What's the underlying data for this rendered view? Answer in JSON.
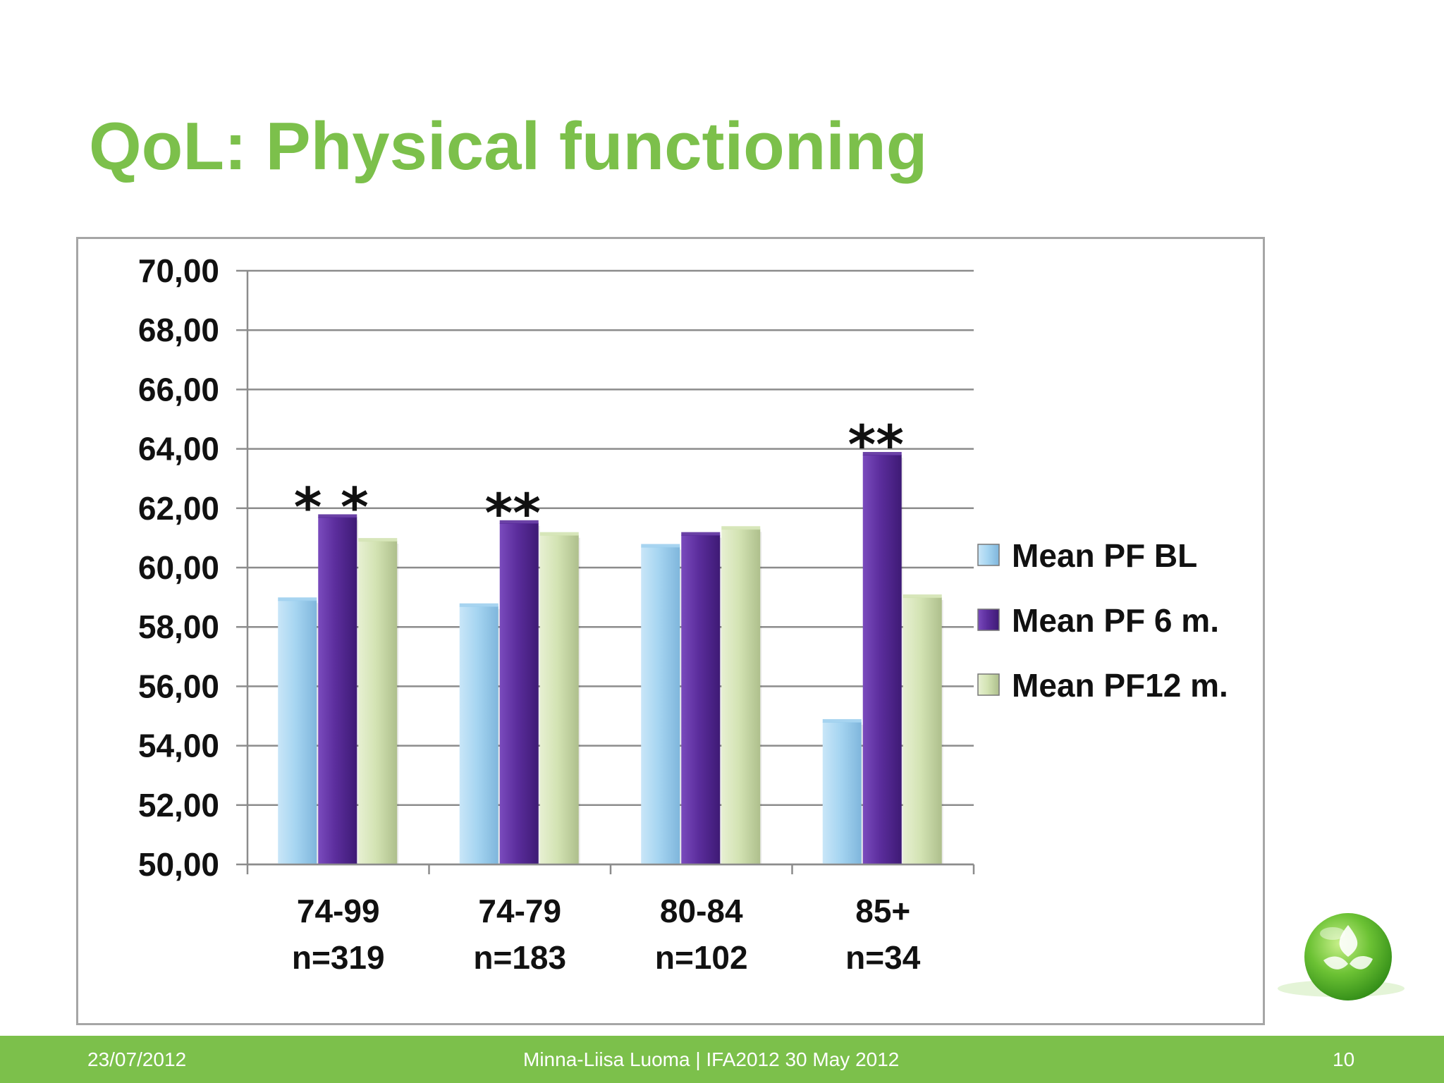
{
  "slide": {
    "title": "QoL: Physical functioning"
  },
  "footer": {
    "date": "23/07/2012",
    "center_text": "Minna-Liisa Luoma |  IFA2012  30 May  2012",
    "page_number": "10"
  },
  "chart_data": {
    "type": "bar",
    "title": "",
    "xlabel": "",
    "ylabel": "",
    "ylim": [
      50,
      70
    ],
    "ytick_step": 2,
    "ytick_labels": [
      "50,00",
      "52,00",
      "54,00",
      "56,00",
      "58,00",
      "60,00",
      "62,00",
      "64,00",
      "66,00",
      "68,00",
      "70,00"
    ],
    "grid": true,
    "legend_position": "right",
    "categories": [
      {
        "label": "74-99",
        "sublabel": "n=319"
      },
      {
        "label": "74-79",
        "sublabel": "n=183"
      },
      {
        "label": "80-84",
        "sublabel": "n=102"
      },
      {
        "label": "85+",
        "sublabel": "n=34"
      }
    ],
    "series": [
      {
        "name": "Mean PF BL",
        "color": "#9dcfee",
        "values": [
          58.9,
          58.7,
          60.7,
          54.8
        ]
      },
      {
        "name": "Mean PF 6 m.",
        "color": "#5b2d9c",
        "values": [
          61.7,
          61.5,
          61.1,
          63.8
        ]
      },
      {
        "name": "Mean PF12 m.",
        "color": "#d3e3b3",
        "values": [
          60.9,
          61.1,
          61.3,
          59.0
        ]
      }
    ],
    "annotations": [
      {
        "text": "* *",
        "category_index": 0
      },
      {
        "text": "**",
        "category_index": 1
      },
      {
        "text": "**",
        "category_index": 3
      }
    ]
  }
}
